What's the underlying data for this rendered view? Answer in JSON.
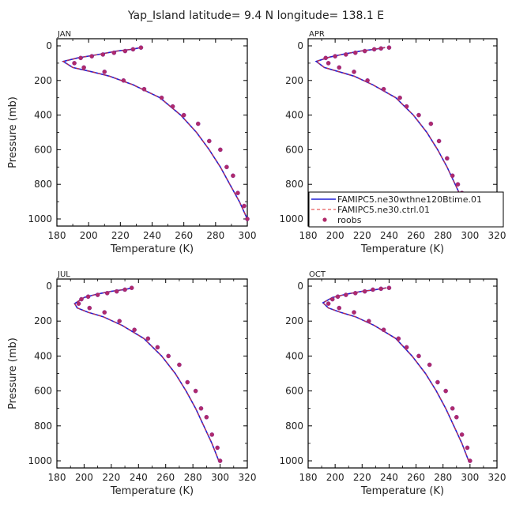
{
  "title": "Yap_Island   latitude= 9.4 N longitude= 138.1 E",
  "colors": {
    "model1": "#1f1fd6",
    "model2": "#e03030",
    "obs": "#b02a6a"
  },
  "chart_data": [
    {
      "type": "line",
      "panel": "JAN",
      "xlabel": "Temperature (K)",
      "ylabel": "Pressure (mb)",
      "xlim": [
        180,
        300
      ],
      "xticks": [
        180,
        200,
        220,
        240,
        260,
        280,
        300
      ],
      "ylim": [
        1000,
        0
      ],
      "yticks": [
        0,
        200,
        400,
        600,
        800,
        1000
      ],
      "legend": false,
      "series": [
        {
          "name": "FAMIPC5.ne30wthne120Btime.01",
          "style": "solid",
          "x": [
            233,
            227,
            218,
            206,
            193,
            184,
            190,
            202,
            213,
            228,
            245,
            258,
            268,
            276,
            283,
            289,
            295,
            300
          ],
          "y": [
            10,
            20,
            30,
            50,
            70,
            90,
            125,
            150,
            175,
            225,
            300,
            400,
            500,
            600,
            700,
            800,
            900,
            1000
          ]
        },
        {
          "name": "FAMIPC5.ne30.ctrl.01",
          "style": "dashed",
          "x": [
            233,
            227,
            218,
            206,
            193,
            184,
            190,
            202,
            213,
            228,
            245,
            258,
            268,
            276,
            283,
            289,
            295,
            300
          ],
          "y": [
            10,
            20,
            30,
            50,
            70,
            90,
            125,
            150,
            175,
            225,
            300,
            400,
            500,
            600,
            700,
            800,
            900,
            1000
          ]
        },
        {
          "name": "roobs",
          "style": "points",
          "x": [
            233,
            228,
            223,
            216,
            209,
            202,
            195,
            191,
            197,
            210,
            222,
            235,
            246,
            253,
            260,
            269,
            276,
            283,
            287,
            291,
            294,
            298,
            300
          ],
          "y": [
            10,
            20,
            30,
            40,
            50,
            60,
            70,
            100,
            125,
            150,
            200,
            250,
            300,
            350,
            400,
            450,
            550,
            600,
            700,
            750,
            850,
            925,
            1000
          ]
        }
      ]
    },
    {
      "type": "line",
      "panel": "APR",
      "xlabel": "Temperature (K)",
      "ylabel": "",
      "xlim": [
        180,
        320
      ],
      "xticks": [
        180,
        200,
        220,
        240,
        260,
        280,
        300,
        320
      ],
      "ylim": [
        1000,
        0
      ],
      "yticks": [
        0,
        200,
        400,
        600,
        800,
        1000
      ],
      "legend": true,
      "legend_location": "lower-right",
      "series": [
        {
          "name": "FAMIPC5.ne30wthne120Btime.01",
          "style": "solid",
          "x": [
            237,
            229,
            219,
            208,
            196,
            186,
            192,
            203,
            214,
            228,
            245,
            258,
            268,
            276,
            283,
            289,
            295,
            300
          ],
          "y": [
            10,
            20,
            30,
            45,
            65,
            90,
            125,
            150,
            175,
            225,
            300,
            400,
            500,
            600,
            700,
            800,
            900,
            1000
          ]
        },
        {
          "name": "FAMIPC5.ne30.ctrl.01",
          "style": "dashed",
          "x": [
            237,
            229,
            219,
            208,
            196,
            186,
            192,
            203,
            214,
            228,
            245,
            258,
            268,
            276,
            283,
            289,
            295,
            300
          ],
          "y": [
            10,
            20,
            30,
            45,
            65,
            90,
            125,
            150,
            175,
            225,
            300,
            400,
            500,
            600,
            700,
            800,
            900,
            1000
          ]
        },
        {
          "name": "roobs",
          "style": "points",
          "x": [
            240,
            234,
            229,
            222,
            215,
            208,
            200,
            193,
            195,
            203,
            214,
            224,
            236,
            248,
            253,
            262,
            271,
            277,
            283,
            287,
            291,
            294,
            298,
            300
          ],
          "y": [
            10,
            15,
            20,
            30,
            40,
            50,
            60,
            70,
            100,
            125,
            150,
            200,
            250,
            300,
            350,
            400,
            450,
            550,
            650,
            750,
            800,
            850,
            950,
            1000
          ]
        }
      ]
    },
    {
      "type": "line",
      "panel": "JUL",
      "xlabel": "Temperature (K)",
      "ylabel": "Pressure (mb)",
      "xlim": [
        180,
        320
      ],
      "xticks": [
        180,
        200,
        220,
        240,
        260,
        280,
        300,
        320
      ],
      "ylim": [
        1000,
        0
      ],
      "yticks": [
        0,
        200,
        400,
        600,
        800,
        1000
      ],
      "legend": false,
      "series": [
        {
          "name": "FAMIPC5.ne30wthne120Btime.01",
          "style": "solid",
          "x": [
            236,
            229,
            220,
            210,
            200,
            193,
            195,
            203,
            214,
            228,
            244,
            257,
            267,
            275,
            282,
            288,
            294,
            299
          ],
          "y": [
            10,
            20,
            30,
            45,
            65,
            100,
            125,
            150,
            175,
            225,
            300,
            400,
            500,
            600,
            700,
            800,
            900,
            1000
          ]
        },
        {
          "name": "FAMIPC5.ne30.ctrl.01",
          "style": "dashed",
          "x": [
            236,
            229,
            220,
            210,
            200,
            193,
            195,
            203,
            214,
            228,
            244,
            257,
            267,
            275,
            282,
            288,
            294,
            299
          ],
          "y": [
            10,
            20,
            30,
            45,
            65,
            100,
            125,
            150,
            175,
            225,
            300,
            400,
            500,
            600,
            700,
            800,
            900,
            1000
          ]
        },
        {
          "name": "roobs",
          "style": "points",
          "x": [
            235,
            230,
            224,
            217,
            210,
            203,
            198,
            196,
            204,
            215,
            226,
            237,
            247,
            254,
            262,
            270,
            276,
            282,
            286,
            290,
            294,
            298,
            300
          ],
          "y": [
            10,
            20,
            30,
            40,
            50,
            60,
            75,
            100,
            125,
            150,
            200,
            250,
            300,
            350,
            400,
            450,
            550,
            600,
            700,
            750,
            850,
            925,
            1000
          ]
        }
      ]
    },
    {
      "type": "line",
      "panel": "OCT",
      "xlabel": "Temperature (K)",
      "ylabel": "",
      "xlim": [
        180,
        320
      ],
      "xticks": [
        180,
        200,
        220,
        240,
        260,
        280,
        300,
        320
      ],
      "ylim": [
        1000,
        0
      ],
      "yticks": [
        0,
        200,
        400,
        600,
        800,
        1000
      ],
      "legend": false,
      "series": [
        {
          "name": "FAMIPC5.ne30wthne120Btime.01",
          "style": "solid",
          "x": [
            238,
            230,
            220,
            209,
            198,
            191,
            195,
            204,
            215,
            229,
            245,
            257,
            267,
            275,
            282,
            288,
            294,
            299
          ],
          "y": [
            10,
            20,
            30,
            45,
            65,
            95,
            125,
            150,
            175,
            225,
            300,
            400,
            500,
            600,
            700,
            800,
            900,
            1000
          ]
        },
        {
          "name": "FAMIPC5.ne30.ctrl.01",
          "style": "dashed",
          "x": [
            238,
            230,
            220,
            209,
            198,
            191,
            195,
            204,
            215,
            229,
            245,
            257,
            267,
            275,
            282,
            288,
            294,
            299
          ],
          "y": [
            10,
            20,
            30,
            45,
            65,
            95,
            125,
            150,
            175,
            225,
            300,
            400,
            500,
            600,
            700,
            800,
            900,
            1000
          ]
        },
        {
          "name": "roobs",
          "style": "points",
          "x": [
            240,
            234,
            228,
            222,
            215,
            208,
            202,
            198,
            195,
            203,
            214,
            225,
            236,
            247,
            253,
            262,
            270,
            276,
            282,
            287,
            290,
            294,
            298,
            300
          ],
          "y": [
            10,
            15,
            20,
            30,
            40,
            50,
            60,
            75,
            100,
            125,
            150,
            200,
            250,
            300,
            350,
            400,
            450,
            550,
            600,
            700,
            750,
            850,
            925,
            1000
          ]
        }
      ]
    }
  ]
}
